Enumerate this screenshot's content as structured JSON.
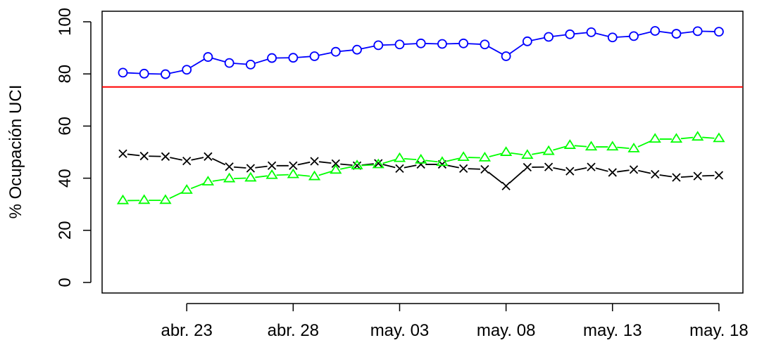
{
  "chart_data": {
    "type": "line",
    "title": "",
    "xlabel": "",
    "ylabel": "% Ocupación UCI",
    "ylim": [
      0,
      100
    ],
    "yticks": [
      0,
      20,
      40,
      60,
      80,
      100
    ],
    "grid": false,
    "x": [
      "abr. 20",
      "abr. 21",
      "abr. 22",
      "abr. 23",
      "abr. 24",
      "abr. 25",
      "abr. 26",
      "abr. 27",
      "abr. 28",
      "abr. 29",
      "abr. 30",
      "may. 01",
      "may. 02",
      "may. 03",
      "may. 04",
      "may. 05",
      "may. 06",
      "may. 07",
      "may. 08",
      "may. 09",
      "may. 10",
      "may. 11",
      "may. 12",
      "may. 13",
      "may. 14",
      "may. 15",
      "may. 16",
      "may. 17",
      "may. 18"
    ],
    "xticks": [
      {
        "label": "abr. 23",
        "x": "abr. 23"
      },
      {
        "label": "abr. 28",
        "x": "abr. 28"
      },
      {
        "label": "may. 03",
        "x": "may. 03"
      },
      {
        "label": "may. 08",
        "x": "may. 08"
      },
      {
        "label": "may. 13",
        "x": "may. 13"
      },
      {
        "label": "may. 18",
        "x": "may. 18"
      }
    ],
    "series": [
      {
        "color": "#0000ff",
        "marker": "circle",
        "values": [
          80.5,
          80.1,
          79.9,
          81.6,
          86.5,
          84.2,
          83.6,
          86.1,
          86.2,
          86.8,
          88.5,
          89.3,
          91.0,
          91.3,
          91.7,
          91.5,
          91.7,
          91.3,
          86.8,
          92.5,
          94.2,
          95.2,
          96.0,
          94.0,
          94.5,
          96.5,
          95.4,
          96.4,
          96.2
        ]
      },
      {
        "color": "#000000",
        "marker": "cross",
        "values": [
          49.4,
          48.5,
          48.3,
          46.6,
          48.3,
          44.4,
          43.8,
          44.8,
          44.8,
          46.5,
          45.6,
          44.8,
          45.7,
          43.7,
          45.3,
          45.3,
          43.7,
          43.4,
          37.0,
          44.2,
          44.3,
          42.7,
          44.3,
          42.2,
          43.3,
          41.5,
          40.3,
          40.8,
          41.1
        ]
      },
      {
        "color": "#00ff00",
        "marker": "triangle",
        "values": [
          31.4,
          31.5,
          31.5,
          35.4,
          38.6,
          39.8,
          40.1,
          41.1,
          41.4,
          40.6,
          43.1,
          44.8,
          45.2,
          47.6,
          47.0,
          46.1,
          48.0,
          47.8,
          49.9,
          48.8,
          50.3,
          52.6,
          52.0,
          52.0,
          51.3,
          55.0,
          55.0,
          55.8,
          55.2
        ]
      }
    ],
    "reference_lines": [
      {
        "y": 75,
        "color": "#ff0000"
      }
    ]
  }
}
